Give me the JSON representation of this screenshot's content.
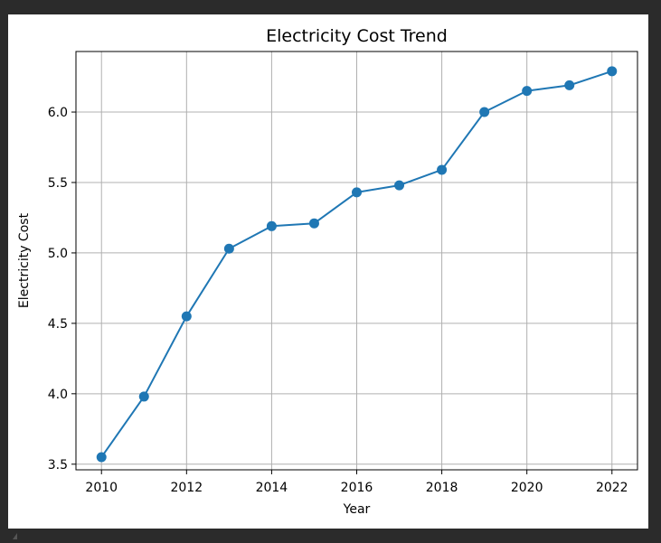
{
  "chart_data": {
    "type": "line",
    "title": "Electricity Cost Trend",
    "xlabel": "Year",
    "ylabel": "Electricity Cost",
    "x": [
      2010,
      2011,
      2012,
      2013,
      2014,
      2015,
      2016,
      2017,
      2018,
      2019,
      2020,
      2021,
      2022
    ],
    "series": [
      {
        "values": [
          3.55,
          3.98,
          4.55,
          5.03,
          5.19,
          5.21,
          5.43,
          5.48,
          5.59,
          6.0,
          6.15,
          6.19,
          6.29
        ]
      }
    ],
    "xlim": [
      2009.4,
      2022.6
    ],
    "ylim": [
      3.46,
      6.43
    ],
    "xticks": [
      "2010",
      "2012",
      "2014",
      "2016",
      "2018",
      "2020",
      "2022"
    ],
    "yticks": [
      "3.5",
      "4.0",
      "4.5",
      "5.0",
      "5.5",
      "6.0"
    ],
    "grid": true,
    "line_color": "#1f77b4",
    "marker": "circle"
  }
}
